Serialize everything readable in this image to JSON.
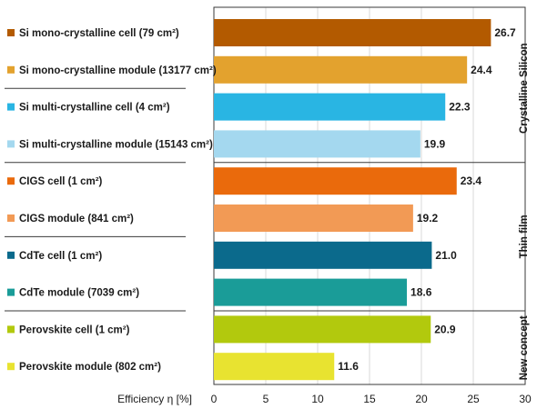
{
  "chart_data": {
    "type": "bar",
    "orientation": "horizontal",
    "categories": [
      "Si mono-crystalline cell (79 cm²)",
      "Si mono-crystalline module (13177 cm²)",
      "Si multi-crystalline cell (4 cm²)",
      "Si multi-crystalline module (15143 cm²)",
      "CIGS cell (1 cm²)",
      "CIGS module (841 cm²)",
      "CdTe cell (1 cm²)",
      "CdTe module (7039 cm²)",
      "Perovskite cell (1 cm²)",
      "Perovskite module (802 cm²)"
    ],
    "values": [
      26.7,
      24.4,
      22.3,
      19.9,
      23.4,
      19.2,
      21.0,
      18.6,
      20.9,
      11.6
    ],
    "value_labels": [
      "26.7",
      "24.4",
      "22.3",
      "19.9",
      "23.4",
      "19.2",
      "21.0",
      "18.6",
      "20.9",
      "11.6"
    ],
    "colors": [
      "#b35a00",
      "#e3a22e",
      "#29b5e3",
      "#a4d8ef",
      "#ea6a0c",
      "#f29a55",
      "#0b6a8c",
      "#1a9c98",
      "#b2c90d",
      "#e8e330"
    ],
    "groups": [
      {
        "label": "Crystalline Silicon",
        "from": 0,
        "to": 3
      },
      {
        "label": "Thin film",
        "from": 4,
        "to": 7
      },
      {
        "label": "New concept",
        "from": 8,
        "to": 9
      }
    ],
    "xlabel": "Efficiency η [%]",
    "xlim": [
      0,
      30
    ],
    "xticks": [
      "0",
      "5",
      "10",
      "15",
      "20",
      "25",
      "30"
    ],
    "grid": true
  }
}
